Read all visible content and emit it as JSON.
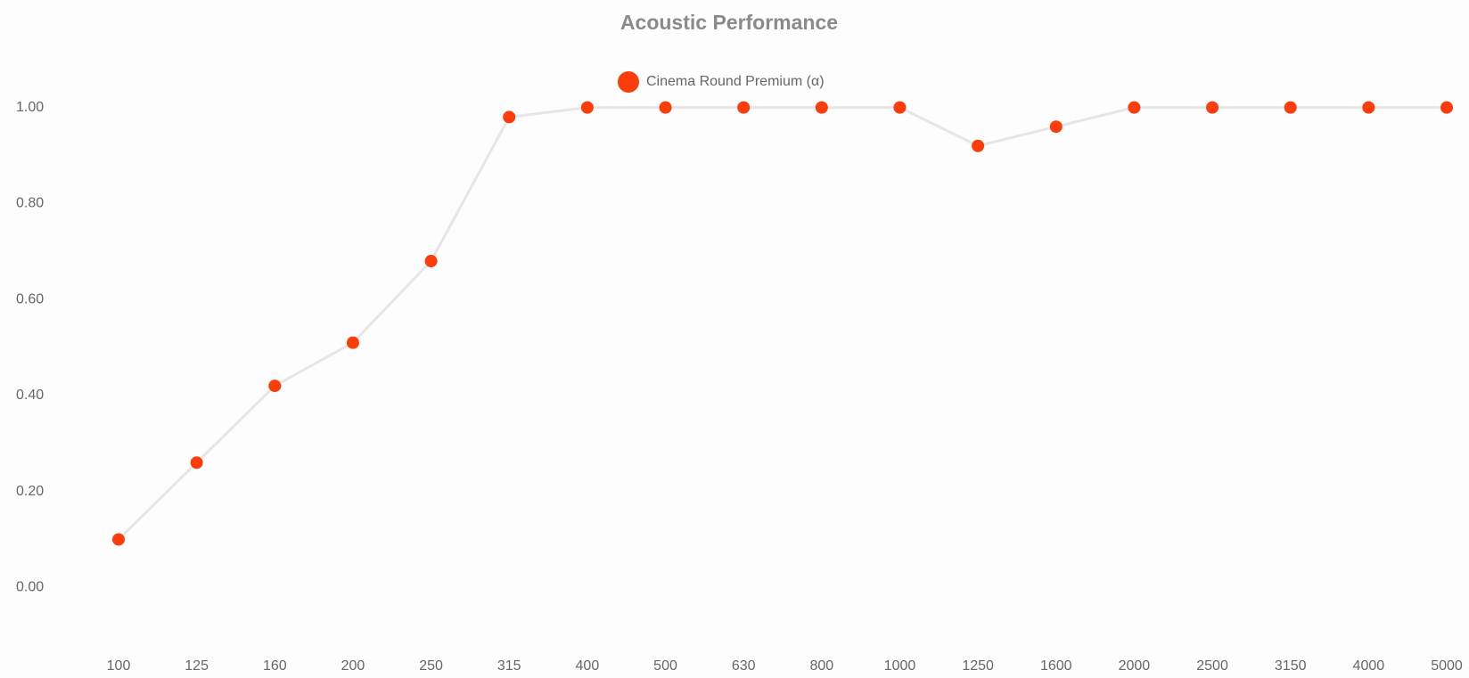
{
  "chart_data": {
    "type": "line",
    "title": "Acoustic Performance",
    "categories": [
      "100",
      "125",
      "160",
      "200",
      "250",
      "315",
      "400",
      "500",
      "630",
      "800",
      "1000",
      "1250",
      "1600",
      "2000",
      "2500",
      "3150",
      "4000",
      "5000"
    ],
    "series": [
      {
        "name": "Cinema Round Premium (α)",
        "color": "#fa3d0a",
        "line_color": "#e6e6e6",
        "values": [
          0.1,
          0.26,
          0.42,
          0.51,
          0.68,
          0.98,
          1.0,
          1.0,
          1.0,
          1.0,
          1.0,
          0.92,
          0.96,
          1.0,
          1.0,
          1.0,
          1.0,
          1.0
        ]
      }
    ],
    "ylim": [
      -0.12,
      1.12
    ],
    "yticks": [
      {
        "value": 0,
        "label": "0.00"
      },
      {
        "value": 0.2,
        "label": "0.20"
      },
      {
        "value": 0.4,
        "label": "0.40"
      },
      {
        "value": 0.6,
        "label": "0.60"
      },
      {
        "value": 0.8,
        "label": "0.80"
      },
      {
        "value": 1,
        "label": "1.00"
      }
    ],
    "grid": false,
    "legend": "top"
  }
}
